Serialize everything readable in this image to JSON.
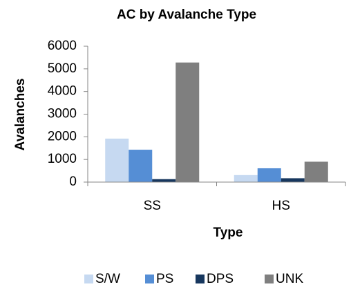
{
  "chart_data": {
    "type": "bar",
    "title": "AC by Avalanche Type",
    "x_label": "Type",
    "y_label": "Avalanches",
    "categories": [
      "SS",
      "HS"
    ],
    "series": [
      {
        "name": "S/W",
        "color": "#c6d9f1",
        "values": [
          1920,
          310
        ]
      },
      {
        "name": "PS",
        "color": "#558ed5",
        "values": [
          1430,
          610
        ]
      },
      {
        "name": "DPS",
        "color": "#17375e",
        "values": [
          130,
          170
        ]
      },
      {
        "name": "UNK",
        "color": "#7f7f7f",
        "values": [
          5280,
          900
        ]
      }
    ],
    "ylim": [
      0,
      6000
    ],
    "yticks": [
      0,
      1000,
      2000,
      3000,
      4000,
      5000,
      6000
    ],
    "grid": false,
    "legend": "bottom"
  }
}
